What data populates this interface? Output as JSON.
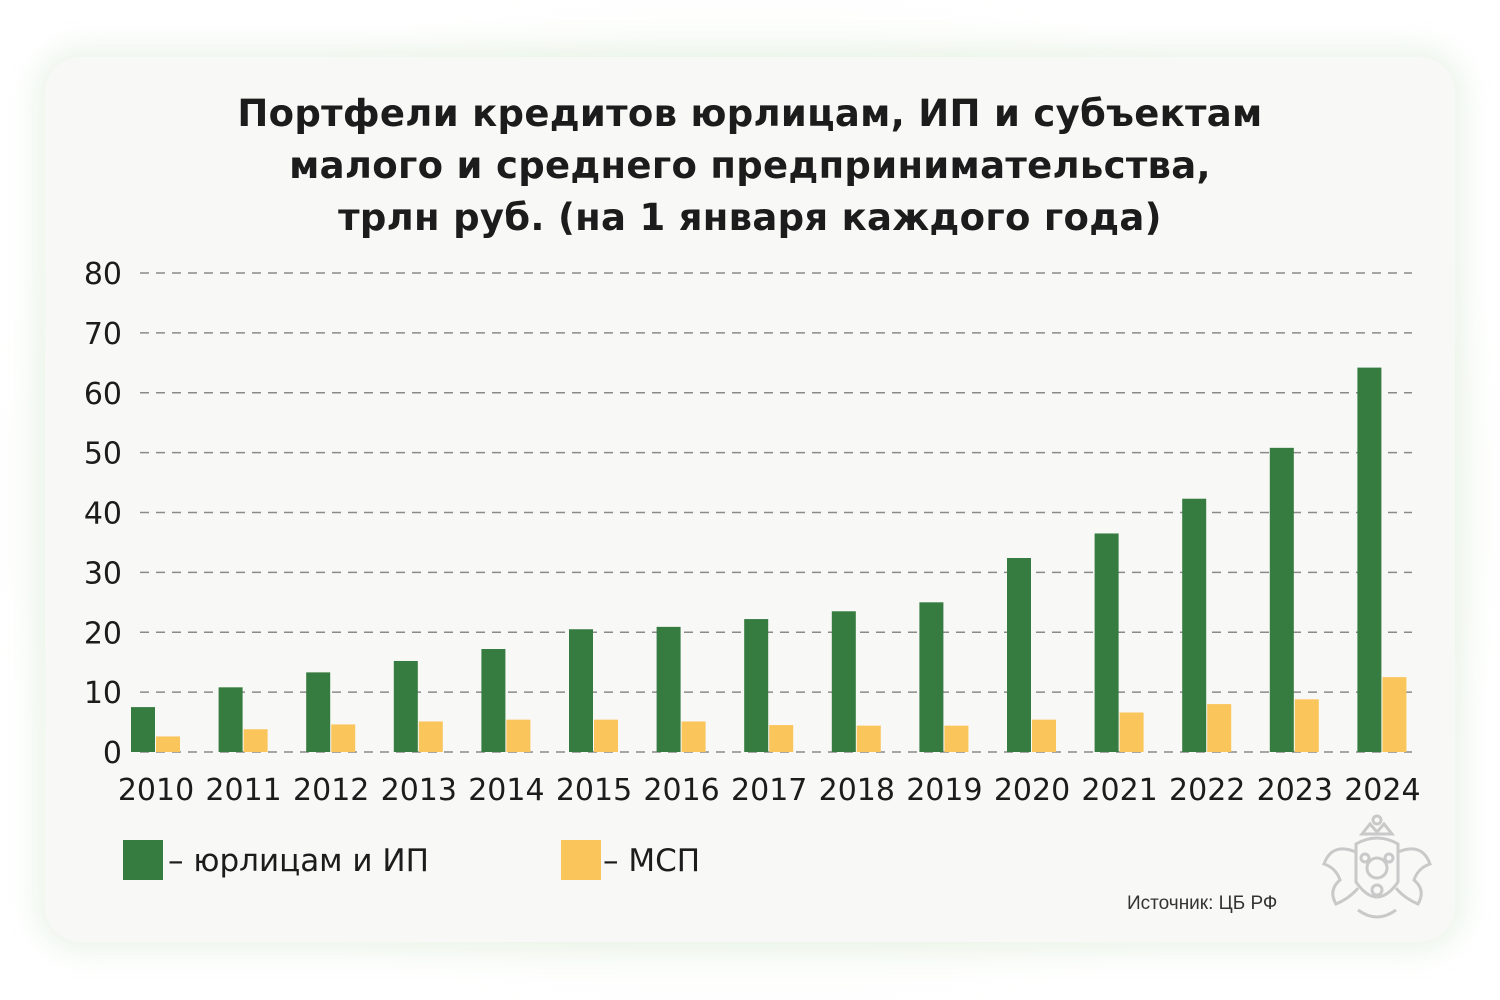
{
  "title_lines": [
    "Портфели кредитов юрлицам, ИП и субъектам",
    "малого и среднего предпринимательства,",
    "трлн руб. (на 1 января каждого года)"
  ],
  "source": "Источник: ЦБ РФ",
  "colors": {
    "green": "#367b40",
    "yellow": "#fac55b",
    "grid": "#8a8a8a",
    "card": "#f8f8f7"
  },
  "chart_data": {
    "type": "bar",
    "title": "Портфели кредитов юрлицам, ИП и субъектам малого и среднего предпринимательства, трлн руб. (на 1 января каждого года)",
    "xlabel": "",
    "ylabel": "",
    "ylim": [
      0,
      80
    ],
    "yticks": [
      0,
      10,
      20,
      30,
      40,
      50,
      60,
      70,
      80
    ],
    "grid": true,
    "legend_position": "bottom-left",
    "categories": [
      "2010",
      "2011",
      "2012",
      "2013",
      "2014",
      "2015",
      "2016",
      "2017",
      "2018",
      "2019",
      "2020",
      "2021",
      "2022",
      "2023",
      "2024"
    ],
    "series": [
      {
        "name": "– юрлицам и ИП",
        "color": "#367b40",
        "values": [
          7.5,
          10.8,
          13.3,
          15.2,
          17.2,
          20.5,
          20.9,
          22.2,
          23.5,
          25.0,
          32.4,
          36.5,
          42.3,
          50.8,
          64.2
        ]
      },
      {
        "name": "– МСП",
        "color": "#fac55b",
        "values": [
          2.6,
          3.8,
          4.6,
          5.1,
          5.4,
          5.4,
          5.1,
          4.5,
          4.4,
          4.4,
          5.4,
          6.6,
          8.0,
          8.8,
          12.5
        ]
      }
    ]
  }
}
